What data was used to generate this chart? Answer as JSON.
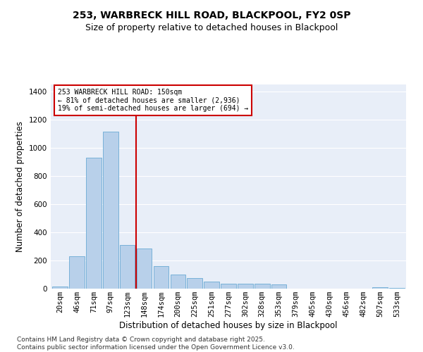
{
  "title_line1": "253, WARBRECK HILL ROAD, BLACKPOOL, FY2 0SP",
  "title_line2": "Size of property relative to detached houses in Blackpool",
  "xlabel": "Distribution of detached houses by size in Blackpool",
  "ylabel": "Number of detached properties",
  "categories": [
    "20sqm",
    "46sqm",
    "71sqm",
    "97sqm",
    "123sqm",
    "148sqm",
    "174sqm",
    "200sqm",
    "225sqm",
    "251sqm",
    "277sqm",
    "302sqm",
    "328sqm",
    "353sqm",
    "379sqm",
    "405sqm",
    "430sqm",
    "456sqm",
    "482sqm",
    "507sqm",
    "533sqm"
  ],
  "values": [
    15,
    230,
    930,
    1115,
    310,
    285,
    160,
    100,
    75,
    50,
    35,
    35,
    35,
    30,
    0,
    0,
    0,
    0,
    0,
    10,
    5
  ],
  "bar_color": "#b8d0ea",
  "bar_edge_color": "#6aaad4",
  "vline_x": 4.5,
  "vline_color": "#cc0000",
  "annotation_text": "253 WARBRECK HILL ROAD: 150sqm\n← 81% of detached houses are smaller (2,936)\n19% of semi-detached houses are larger (694) →",
  "annotation_box_color": "#cc0000",
  "ylim": [
    0,
    1450
  ],
  "yticks": [
    0,
    200,
    400,
    600,
    800,
    1000,
    1200,
    1400
  ],
  "background_color": "#e8eef8",
  "grid_color": "#ffffff",
  "footer_text": "Contains HM Land Registry data © Crown copyright and database right 2025.\nContains public sector information licensed under the Open Government Licence v3.0.",
  "title_fontsize": 10,
  "subtitle_fontsize": 9,
  "axis_label_fontsize": 8.5,
  "tick_fontsize": 7.5,
  "footer_fontsize": 6.5
}
